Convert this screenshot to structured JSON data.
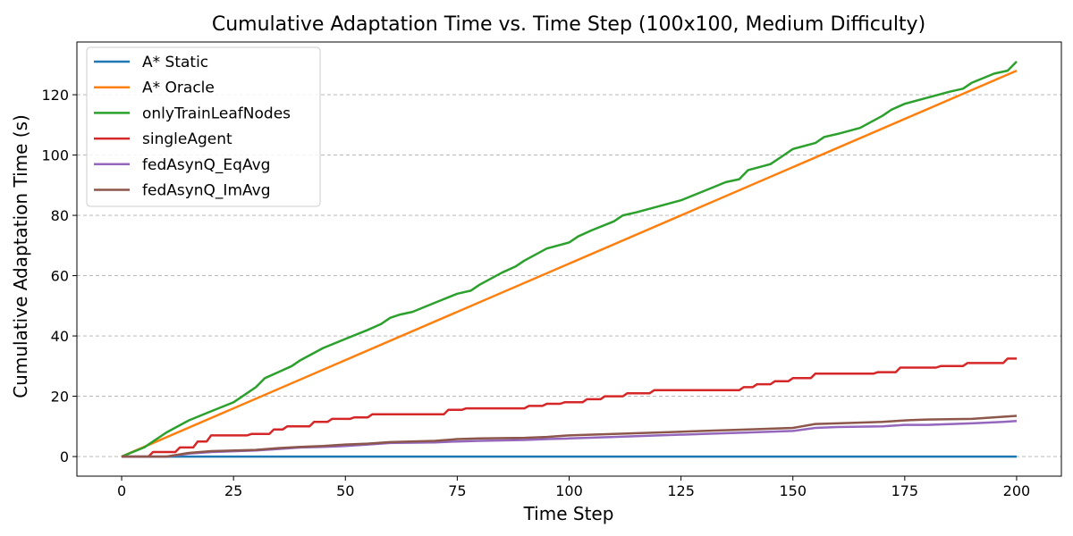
{
  "chart_data": {
    "type": "line",
    "title": "Cumulative Adaptation Time vs. Time Step (100x100, Medium Difficulty)",
    "xlabel": "Time Step",
    "ylabel": "Cumulative Adaptation Time (s)",
    "xlim": [
      -10,
      210
    ],
    "ylim": [
      -6.5,
      137.5
    ],
    "xticks": [
      0,
      25,
      50,
      75,
      100,
      125,
      150,
      175,
      200
    ],
    "yticks": [
      0,
      20,
      40,
      60,
      80,
      100,
      120
    ],
    "grid": "horizontal-dashed",
    "legend_position": "top-left",
    "series": [
      {
        "name": "A* Static",
        "color": "#1f77b4",
        "x": [
          0,
          200
        ],
        "y": [
          0,
          0
        ]
      },
      {
        "name": "A* Oracle",
        "color": "#ff7f0e",
        "x": [
          0,
          200
        ],
        "y": [
          0,
          128
        ]
      },
      {
        "name": "onlyTrainLeafNodes",
        "color": "#2ca02c",
        "x": [
          0,
          5,
          10,
          15,
          20,
          25,
          28,
          30,
          32,
          35,
          38,
          40,
          45,
          50,
          55,
          58,
          60,
          62,
          65,
          70,
          75,
          78,
          80,
          85,
          88,
          90,
          95,
          100,
          102,
          105,
          110,
          112,
          115,
          120,
          125,
          130,
          135,
          138,
          140,
          145,
          148,
          150,
          155,
          157,
          160,
          165,
          170,
          172,
          175,
          180,
          185,
          188,
          190,
          195,
          198,
          200
        ],
        "y": [
          0,
          3,
          8,
          12,
          15,
          18,
          21,
          23,
          26,
          28,
          30,
          32,
          36,
          39,
          42,
          44,
          46,
          47,
          48,
          51,
          54,
          55,
          57,
          61,
          63,
          65,
          69,
          71,
          73,
          75,
          78,
          80,
          81,
          83,
          85,
          88,
          91,
          92,
          95,
          97,
          100,
          102,
          104,
          106,
          107,
          109,
          113,
          115,
          117,
          119,
          121,
          122,
          124,
          127,
          128,
          131
        ]
      },
      {
        "name": "singleAgent",
        "color": "#d62728",
        "x": [
          0,
          6,
          7,
          12,
          13,
          16,
          17,
          19,
          20,
          28,
          29,
          33,
          34,
          36,
          37,
          42,
          43,
          46,
          47,
          51,
          52,
          55,
          56,
          72,
          73,
          76,
          77,
          90,
          91,
          94,
          95,
          98,
          99,
          103,
          104,
          107,
          108,
          112,
          113,
          118,
          119,
          138,
          139,
          141,
          142,
          145,
          146,
          149,
          150,
          154,
          155,
          168,
          169,
          173,
          174,
          182,
          183,
          188,
          189,
          197,
          198,
          200
        ],
        "y": [
          0,
          0,
          1.5,
          1.5,
          3,
          3,
          5,
          5,
          7,
          7,
          7.5,
          7.5,
          9,
          9,
          10,
          10,
          11.5,
          11.5,
          12.5,
          12.5,
          13,
          13,
          14,
          14,
          15.5,
          15.5,
          16,
          16,
          16.8,
          16.8,
          17.5,
          17.5,
          18,
          18,
          19,
          19,
          20,
          20,
          21,
          21,
          22,
          22,
          23,
          23,
          24,
          24,
          25,
          25,
          26,
          26,
          27.5,
          27.5,
          28,
          28,
          29.5,
          29.5,
          30,
          30,
          31,
          31,
          32.5,
          32.5
        ]
      },
      {
        "name": "fedAsynQ_EqAvg",
        "color": "#9467bd",
        "x": [
          0,
          10,
          15,
          20,
          30,
          35,
          40,
          45,
          50,
          55,
          60,
          70,
          75,
          80,
          90,
          95,
          100,
          110,
          120,
          130,
          140,
          150,
          155,
          160,
          170,
          175,
          180,
          190,
          197,
          200
        ],
        "y": [
          0,
          0,
          1,
          1.5,
          2,
          2.5,
          3,
          3.2,
          3.5,
          4,
          4.5,
          4.7,
          5,
          5.2,
          5.5,
          5.8,
          6,
          6.5,
          7,
          7.5,
          8,
          8.5,
          9.5,
          9.8,
          10,
          10.5,
          10.5,
          11,
          11.5,
          11.8
        ]
      },
      {
        "name": "fedAsynQ_ImAvg",
        "color": "#8c564b",
        "x": [
          0,
          10,
          15,
          20,
          30,
          35,
          40,
          45,
          50,
          55,
          60,
          70,
          75,
          80,
          90,
          95,
          100,
          110,
          120,
          130,
          140,
          150,
          155,
          160,
          170,
          175,
          180,
          190,
          197,
          200
        ],
        "y": [
          0,
          0,
          1.2,
          1.8,
          2.2,
          2.8,
          3.2,
          3.5,
          4,
          4.3,
          4.8,
          5.2,
          5.8,
          6,
          6.2,
          6.5,
          7,
          7.5,
          8,
          8.5,
          9,
          9.5,
          10.8,
          11,
          11.5,
          12,
          12.3,
          12.5,
          13.2,
          13.5
        ]
      }
    ]
  }
}
